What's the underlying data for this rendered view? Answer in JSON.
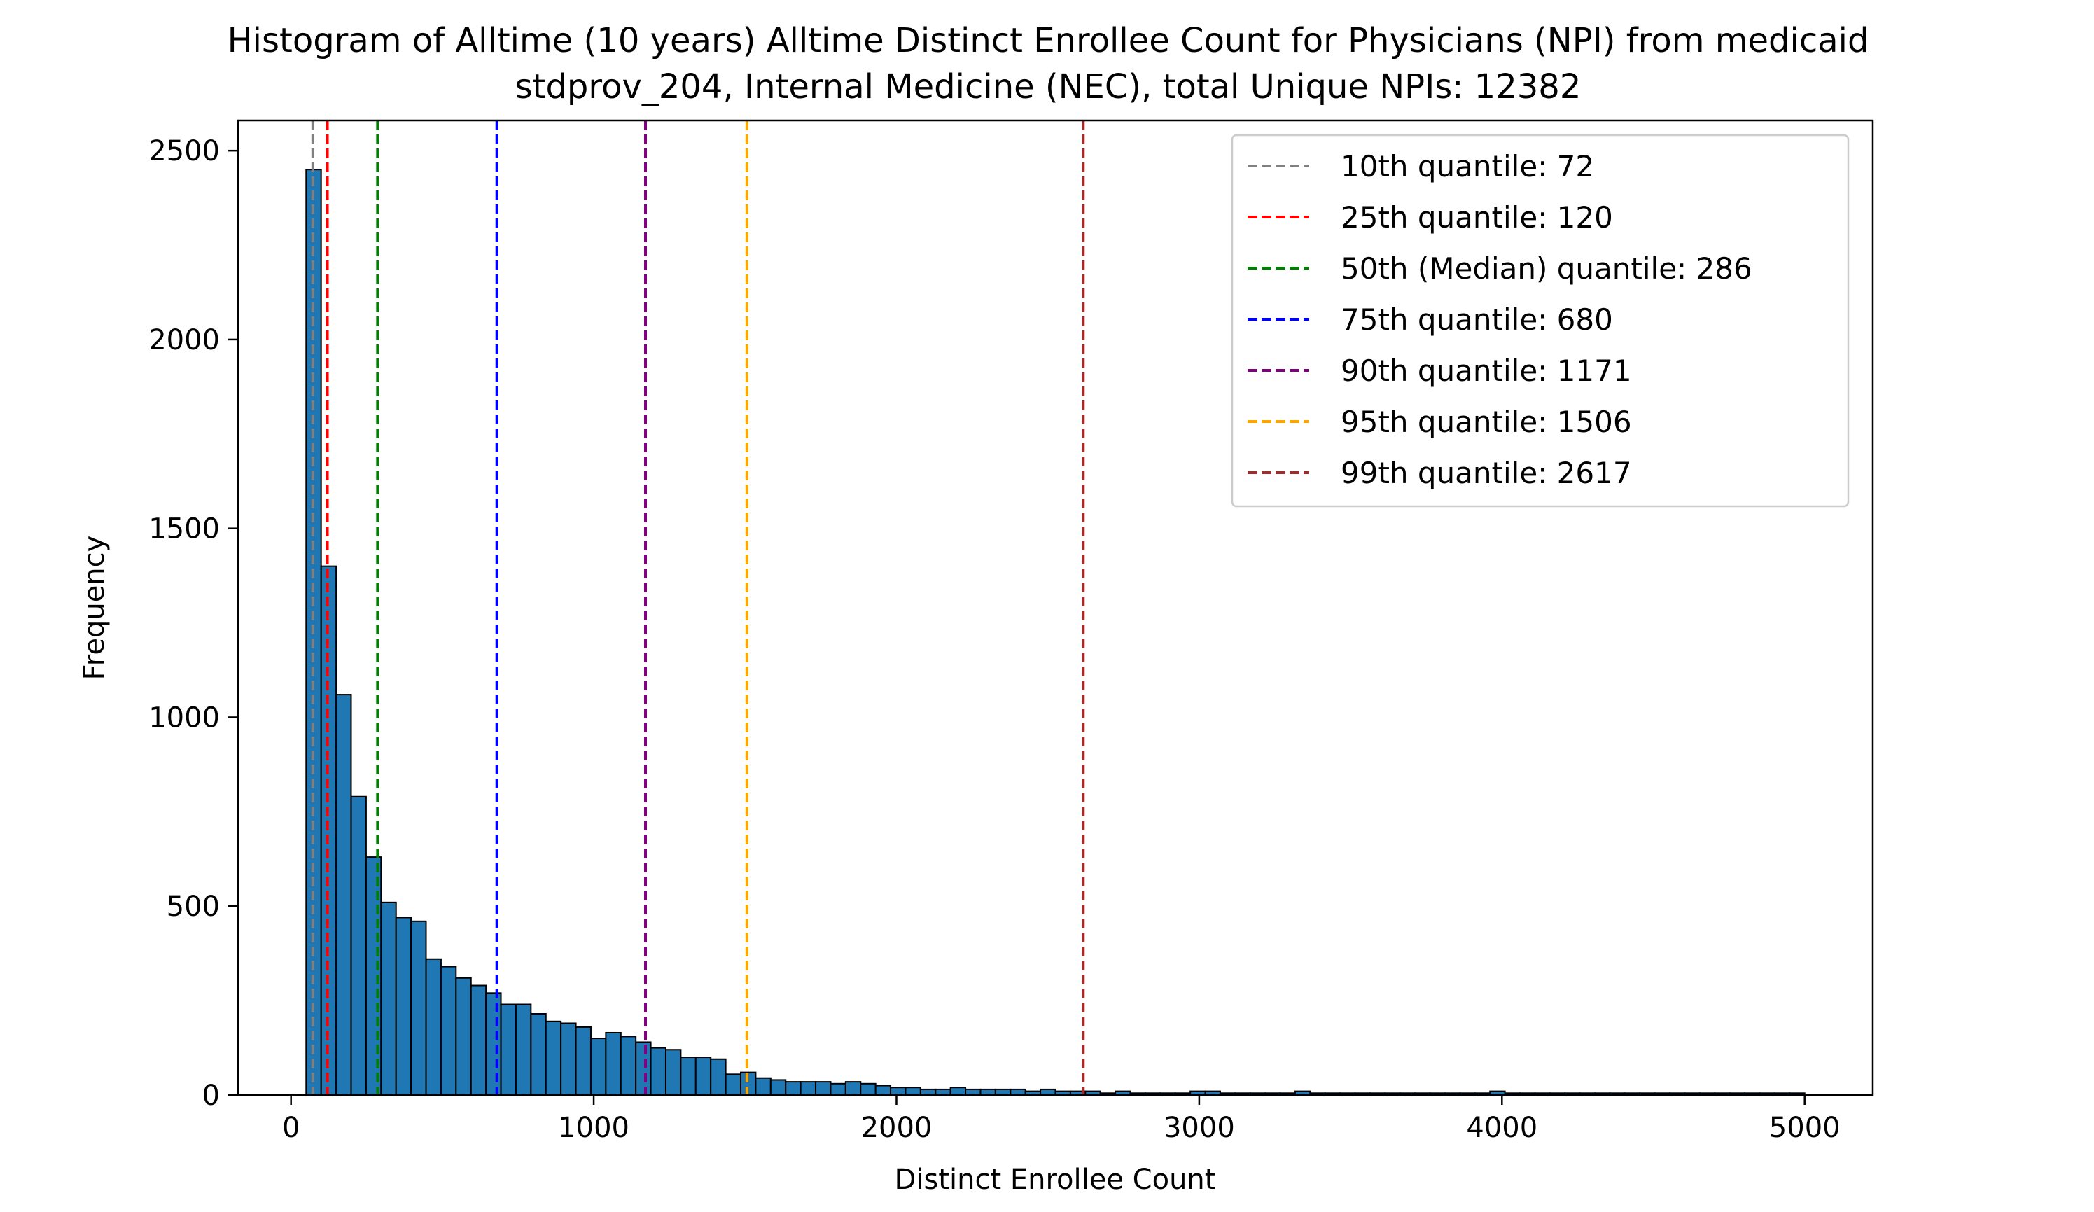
{
  "chart_data": {
    "type": "bar",
    "title": "Histogram of Alltime (10 years) Alltime Distinct Enrollee Count for Physicians (NPI) from medicaid",
    "subtitle": "stdprov_204, Internal Medicine (NEC), total Unique NPIs: 12382",
    "xlabel": "Distinct Enrollee Count",
    "ylabel": "Frequency",
    "xlim": [
      -175,
      5225
    ],
    "ylim": [
      0,
      2580
    ],
    "xticks": [
      0,
      1000,
      2000,
      3000,
      4000,
      5000
    ],
    "xtick_labels": [
      "0",
      "1000",
      "2000",
      "3000",
      "4000",
      "5000"
    ],
    "yticks": [
      0,
      500,
      1000,
      1500,
      2000,
      2500
    ],
    "ytick_labels": [
      "0",
      "500",
      "1000",
      "1500",
      "2000",
      "2500"
    ],
    "grid": false,
    "bar_color": "#1f77b4",
    "bar_edge_color": "#000000",
    "bin_edges": [
      50,
      99.5,
      149,
      198.5,
      248,
      297.5,
      347,
      396.5,
      446,
      495.5,
      545,
      594.5,
      644,
      693.5,
      743,
      792.5,
      842,
      891.5,
      941,
      990.5,
      1040,
      1089.5,
      1139,
      1188.5,
      1238,
      1287.5,
      1337,
      1386.5,
      1436,
      1485.5,
      1535,
      1584.5,
      1634,
      1683.5,
      1733,
      1782.5,
      1832,
      1881.5,
      1931,
      1980.5,
      2030,
      2079.5,
      2129,
      2178.5,
      2228,
      2277.5,
      2327,
      2376.5,
      2426,
      2475.5,
      2525,
      2574.5,
      2624,
      2673.5,
      2723,
      2772.5,
      2822,
      2871.5,
      2921,
      2970.5,
      3020,
      3069.5,
      3119,
      3168.5,
      3218,
      3267.5,
      3317,
      3366.5,
      3416,
      3465.5,
      3515,
      3564.5,
      3614,
      3663.5,
      3713,
      3762.5,
      3812,
      3861.5,
      3911,
      3960.5,
      4010,
      4059.5,
      4109,
      4158.5,
      4208,
      4257.5,
      4307,
      4356.5,
      4406,
      4455.5,
      4505,
      4554.5,
      4604,
      4653.5,
      4703,
      4752.5,
      4802,
      4851.5,
      4901,
      4950.5,
      5000
    ],
    "counts": [
      2450,
      1400,
      1060,
      790,
      630,
      510,
      470,
      460,
      360,
      340,
      310,
      290,
      270,
      240,
      240,
      215,
      195,
      190,
      180,
      150,
      165,
      155,
      140,
      125,
      120,
      100,
      100,
      95,
      55,
      60,
      45,
      40,
      35,
      35,
      35,
      30,
      35,
      30,
      25,
      20,
      20,
      15,
      15,
      20,
      15,
      15,
      15,
      15,
      10,
      15,
      10,
      10,
      10,
      5,
      10,
      5,
      5,
      5,
      5,
      10,
      10,
      5,
      5,
      5,
      5,
      5,
      10,
      5,
      5,
      5,
      5,
      5,
      5,
      5,
      5,
      5,
      5,
      5,
      5,
      10,
      5,
      5,
      5,
      5,
      5,
      5,
      5,
      5,
      5,
      5,
      5,
      5,
      5,
      5,
      5,
      5,
      5,
      5,
      5,
      5
    ],
    "quantiles": [
      {
        "label": "10th quantile: 72",
        "value": 72,
        "color": "#808080"
      },
      {
        "label": "25th quantile: 120",
        "value": 120,
        "color": "#ff0000"
      },
      {
        "label": "50th (Median) quantile: 286",
        "value": 286,
        "color": "#008000"
      },
      {
        "label": "75th quantile: 680",
        "value": 680,
        "color": "#0000ff"
      },
      {
        "label": "90th quantile: 1171",
        "value": 1171,
        "color": "#800080"
      },
      {
        "label": "95th quantile: 1506",
        "value": 1506,
        "color": "#ffa500"
      },
      {
        "label": "99th quantile: 2617",
        "value": 2617,
        "color": "#a52a2a"
      }
    ],
    "legend_position": "top-right"
  }
}
